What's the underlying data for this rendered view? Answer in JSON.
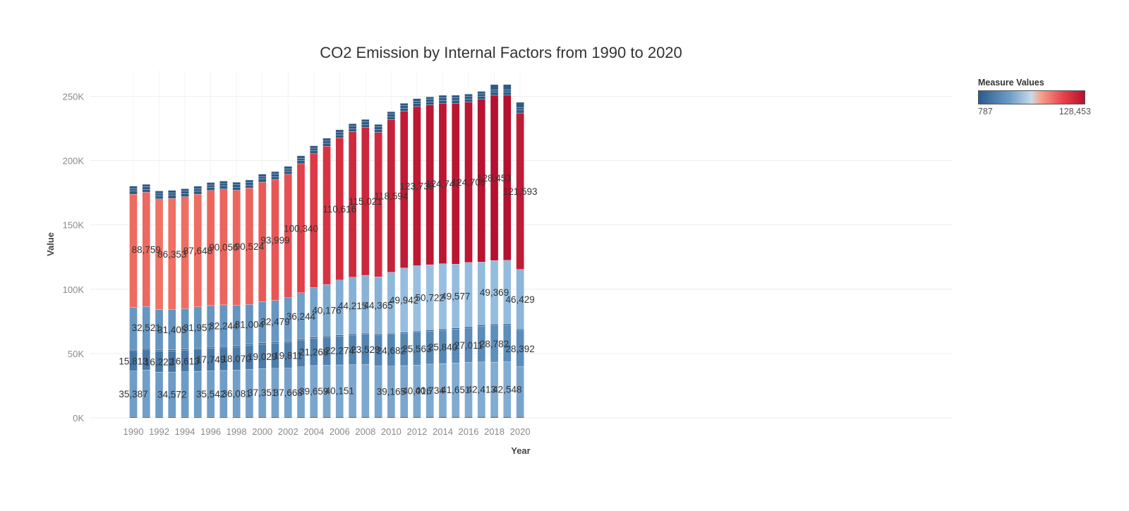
{
  "chart_data": {
    "type": "bar",
    "stacked": true,
    "title": "CO2 Emission by Internal Factors from 1990 to 2020",
    "xlabel": "Year",
    "ylabel": "Value",
    "ylim": [
      0,
      270000
    ],
    "yticks": [
      0,
      50000,
      100000,
      150000,
      200000,
      250000
    ],
    "ytick_labels": [
      "0K",
      "50K",
      "100K",
      "150K",
      "200K",
      "250K"
    ],
    "xtick_labels": [
      "1990",
      "1992",
      "1994",
      "1996",
      "1998",
      "2000",
      "2002",
      "2004",
      "2006",
      "2008",
      "2010",
      "2012",
      "2014",
      "2016",
      "2018",
      "2020"
    ],
    "grid": true,
    "legend": {
      "title": "Measure Values",
      "min_label": "787",
      "max_label": "128,453",
      "placement": "top-right"
    },
    "color_scale": {
      "min": 787,
      "max": 128453,
      "low": "#2a5a8c",
      "mid": "#c9daea",
      "high": "#b5102f"
    },
    "x": [
      1990,
      1991,
      1992,
      1993,
      1994,
      1995,
      1996,
      1997,
      1998,
      1999,
      2000,
      2001,
      2002,
      2003,
      2004,
      2005,
      2006,
      2007,
      2008,
      2009,
      2010,
      2011,
      2012,
      2013,
      2014,
      2015,
      2016,
      2017,
      2018,
      2019,
      2020
    ],
    "series": [
      {
        "values": [
          1000,
          1000,
          1000,
          1000,
          1000,
          1000,
          1000,
          1000,
          1000,
          1000,
          1000,
          1000,
          1000,
          1000,
          1000,
          1000,
          1000,
          1000,
          1000,
          1000,
          1000,
          1000,
          1000,
          1000,
          1000,
          1000,
          1000,
          1000,
          1000,
          1000,
          1000
        ]
      },
      {
        "values": [
          35387,
          36200,
          34600,
          34572,
          34800,
          35200,
          35542,
          35800,
          36081,
          36700,
          37351,
          37500,
          37668,
          38600,
          39659,
          39900,
          40151,
          40300,
          40400,
          39300,
          39165,
          39600,
          40016,
          40734,
          41200,
          41651,
          42100,
          42413,
          42300,
          42548,
          38700
        ]
      },
      {
        "values": [
          15813,
          16000,
          16222,
          16400,
          16613,
          17200,
          17749,
          17900,
          18070,
          18600,
          19029,
          19400,
          19811,
          20500,
          21268,
          21700,
          22274,
          22900,
          23529,
          24100,
          24682,
          25100,
          25563,
          25700,
          25840,
          26400,
          27011,
          27900,
          28782,
          28600,
          28392
        ]
      },
      {
        "values": [
          900,
          900,
          900,
          900,
          900,
          900,
          900,
          900,
          900,
          900,
          900,
          900,
          900,
          900,
          900,
          900,
          900,
          900,
          900,
          900,
          900,
          900,
          900,
          900,
          900,
          900,
          900,
          900,
          900,
          900,
          900
        ]
      },
      {
        "values": [
          32800,
          32521,
          31500,
          31405,
          31600,
          31957,
          32100,
          32244,
          31400,
          31004,
          32000,
          32479,
          34000,
          36244,
          38500,
          40176,
          42800,
          44215,
          45000,
          44365,
          47500,
          49942,
          50800,
          50722,
          50900,
          49577,
          49800,
          48900,
          49369,
          49500,
          46429
        ]
      },
      {
        "values": [
          88000,
          88759,
          86000,
          86353,
          87000,
          87648,
          89500,
          90056,
          89500,
          90524,
          93000,
          93999,
          96000,
          100340,
          104000,
          107500,
          110616,
          113200,
          115021,
          112300,
          118594,
          121800,
          123739,
          124300,
          124747,
          125100,
          124706,
          126500,
          128453,
          128300,
          121593
        ]
      },
      {
        "values": [
          2400,
          2300,
          2300,
          2300,
          2300,
          2300,
          2300,
          2300,
          2300,
          2300,
          2300,
          2300,
          2300,
          2300,
          2300,
          2300,
          2300,
          2300,
          2300,
          2300,
          2300,
          2300,
          2300,
          2300,
          2300,
          2300,
          2300,
          2300,
          2300,
          2300,
          2300
        ]
      },
      {
        "values": [
          2000,
          2000,
          2000,
          2000,
          2000,
          2000,
          2000,
          2000,
          2000,
          2000,
          2000,
          2000,
          2000,
          2000,
          2000,
          2000,
          2000,
          2000,
          2000,
          2000,
          2000,
          2000,
          2000,
          2000,
          2000,
          2000,
          2000,
          2000,
          2000,
          2000,
          2000
        ]
      },
      {
        "values": [
          1900,
          1900,
          1900,
          1900,
          1900,
          1900,
          1900,
          1900,
          1900,
          1900,
          1900,
          1900,
          1900,
          1900,
          1900,
          1900,
          1900,
          1900,
          1900,
          1900,
          1900,
          1900,
          1900,
          1900,
          1900,
          1900,
          1900,
          1900,
          4000,
          4000,
          4000
        ]
      }
    ],
    "data_labels": [
      {
        "x": 1990,
        "series": 1,
        "text": "35,387"
      },
      {
        "x": 1993,
        "series": 1,
        "text": "34,572"
      },
      {
        "x": 1996,
        "series": 1,
        "text": "35,542"
      },
      {
        "x": 1998,
        "series": 1,
        "text": "36,081"
      },
      {
        "x": 2000,
        "series": 1,
        "text": "37,351"
      },
      {
        "x": 2002,
        "series": 1,
        "text": "37,668"
      },
      {
        "x": 2004,
        "series": 1,
        "text": "39,659"
      },
      {
        "x": 2006,
        "series": 1,
        "text": "40,151"
      },
      {
        "x": 2010,
        "series": 1,
        "text": "39,165"
      },
      {
        "x": 2012,
        "series": 1,
        "text": "40,016"
      },
      {
        "x": 2013,
        "series": 1,
        "text": "40,734"
      },
      {
        "x": 2015,
        "series": 1,
        "text": "41,651"
      },
      {
        "x": 2017,
        "series": 1,
        "text": "42,413"
      },
      {
        "x": 2019,
        "series": 1,
        "text": "42,548"
      },
      {
        "x": 1990,
        "series": 2,
        "text": "15,813"
      },
      {
        "x": 1992,
        "series": 2,
        "text": "16,222"
      },
      {
        "x": 1994,
        "series": 2,
        "text": "16,613"
      },
      {
        "x": 1996,
        "series": 2,
        "text": "17,749"
      },
      {
        "x": 1998,
        "series": 2,
        "text": "18,070"
      },
      {
        "x": 2000,
        "series": 2,
        "text": "19,029"
      },
      {
        "x": 2002,
        "series": 2,
        "text": "19,811"
      },
      {
        "x": 2004,
        "series": 2,
        "text": "21,268"
      },
      {
        "x": 2006,
        "series": 2,
        "text": "22,274"
      },
      {
        "x": 2008,
        "series": 2,
        "text": "23,529"
      },
      {
        "x": 2010,
        "series": 2,
        "text": "24,682"
      },
      {
        "x": 2012,
        "series": 2,
        "text": "25,563"
      },
      {
        "x": 2014,
        "series": 2,
        "text": "25,840"
      },
      {
        "x": 2016,
        "series": 2,
        "text": "27,011"
      },
      {
        "x": 2018,
        "series": 2,
        "text": "28,782"
      },
      {
        "x": 2020,
        "series": 2,
        "text": "28,392"
      },
      {
        "x": 1991,
        "series": 4,
        "text": "32,521"
      },
      {
        "x": 1993,
        "series": 4,
        "text": "31,405"
      },
      {
        "x": 1995,
        "series": 4,
        "text": "31,957"
      },
      {
        "x": 1997,
        "series": 4,
        "text": "32,244"
      },
      {
        "x": 1999,
        "series": 4,
        "text": "31,004"
      },
      {
        "x": 2001,
        "series": 4,
        "text": "32,479"
      },
      {
        "x": 2003,
        "series": 4,
        "text": "36,244"
      },
      {
        "x": 2005,
        "series": 4,
        "text": "40,176"
      },
      {
        "x": 2007,
        "series": 4,
        "text": "44,215"
      },
      {
        "x": 2009,
        "series": 4,
        "text": "44,365"
      },
      {
        "x": 2011,
        "series": 4,
        "text": "49,942"
      },
      {
        "x": 2013,
        "series": 4,
        "text": "50,722"
      },
      {
        "x": 2015,
        "series": 4,
        "text": "49,577"
      },
      {
        "x": 2018,
        "series": 4,
        "text": "49,369"
      },
      {
        "x": 2020,
        "series": 4,
        "text": "46,429"
      },
      {
        "x": 1991,
        "series": 5,
        "text": "88,759"
      },
      {
        "x": 1993,
        "series": 5,
        "text": "86,353"
      },
      {
        "x": 1995,
        "series": 5,
        "text": "87,648"
      },
      {
        "x": 1997,
        "series": 5,
        "text": "90,056"
      },
      {
        "x": 1999,
        "series": 5,
        "text": "90,524"
      },
      {
        "x": 2001,
        "series": 5,
        "text": "93,999"
      },
      {
        "x": 2003,
        "series": 5,
        "text": "100,340"
      },
      {
        "x": 2006,
        "series": 5,
        "text": "110,616"
      },
      {
        "x": 2008,
        "series": 5,
        "text": "115,021"
      },
      {
        "x": 2010,
        "series": 5,
        "text": "118,594"
      },
      {
        "x": 2012,
        "series": 5,
        "text": "123,739"
      },
      {
        "x": 2014,
        "series": 5,
        "text": "124,747"
      },
      {
        "x": 2016,
        "series": 5,
        "text": "124,706"
      },
      {
        "x": 2018,
        "series": 5,
        "text": "128,453"
      },
      {
        "x": 2020,
        "series": 5,
        "text": "121,593"
      }
    ]
  }
}
